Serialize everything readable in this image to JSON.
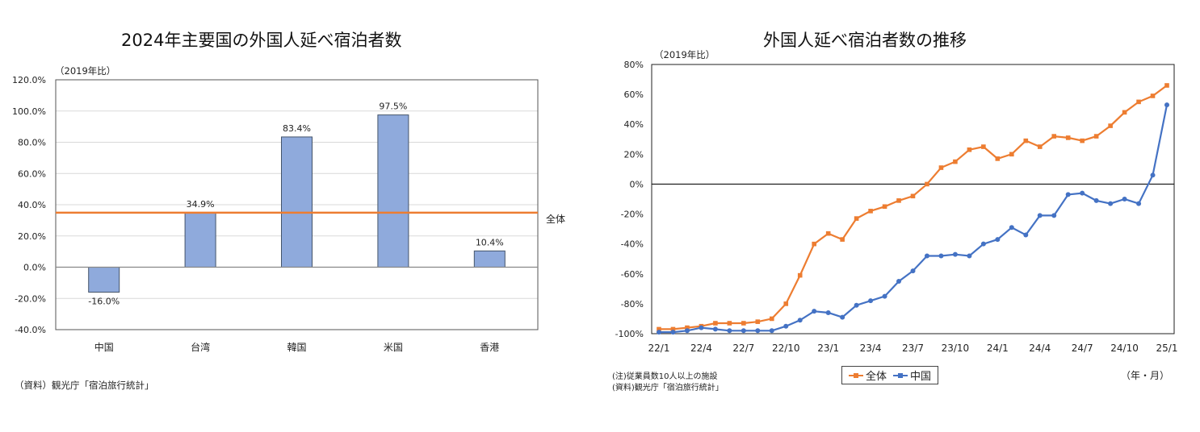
{
  "left_chart": {
    "title": "2024年主要国の外国人延べ宿泊者数",
    "unit_note": "（2019年比）",
    "source": "（資料）観光庁「宿泊旅行統計」",
    "reference_label": "全体",
    "y_ticks": [
      "120.0%",
      "100.0%",
      "80.0%",
      "60.0%",
      "40.0%",
      "20.0%",
      "0.0%",
      "-20.0%",
      "-40.0%"
    ],
    "colors": {
      "bar": "#8faadc",
      "bar_border": "#44546a",
      "reference": "#ed7d31"
    }
  },
  "right_chart": {
    "title": "外国人延べ宿泊者数の推移",
    "unit_note": "（2019年比）",
    "note": "(注)従業員数10人以上の施設",
    "source": "(資料)観光庁「宿泊旅行統計」",
    "x_unit": "（年・月）",
    "y_ticks": [
      "80%",
      "60%",
      "40%",
      "20%",
      "0%",
      "-20%",
      "-40%",
      "-60%",
      "-80%",
      "-100%"
    ],
    "x_ticks": [
      "22/1",
      "22/4",
      "22/7",
      "22/10",
      "23/1",
      "23/4",
      "23/7",
      "23/10",
      "24/1",
      "24/4",
      "24/7",
      "24/10",
      "25/1"
    ],
    "legend": [
      {
        "label": "全体",
        "color": "#ed7d31"
      },
      {
        "label": "中国",
        "color": "#4472c4"
      }
    ]
  },
  "chart_data": [
    {
      "type": "bar",
      "title": "2024年主要国の外国人延べ宿泊者数",
      "ylabel": "（2019年比）",
      "xlabel": "",
      "categories": [
        "中国",
        "台湾",
        "韓国",
        "米国",
        "香港"
      ],
      "values": [
        -16.0,
        34.9,
        83.4,
        97.5,
        10.4
      ],
      "value_labels": [
        "-16.0%",
        "34.9%",
        "83.4%",
        "97.5%",
        "10.4%"
      ],
      "reference_line": {
        "label": "全体",
        "value": 34.9
      },
      "ylim": [
        -40,
        120
      ],
      "grid": true,
      "source": "（資料）観光庁「宿泊旅行統計」"
    },
    {
      "type": "line",
      "title": "外国人延べ宿泊者数の推移",
      "ylabel": "（2019年比）",
      "xlabel": "（年・月）",
      "x": [
        "22/1",
        "22/2",
        "22/3",
        "22/4",
        "22/5",
        "22/6",
        "22/7",
        "22/8",
        "22/9",
        "22/10",
        "22/11",
        "22/12",
        "23/1",
        "23/2",
        "23/3",
        "23/4",
        "23/5",
        "23/6",
        "23/7",
        "23/8",
        "23/9",
        "23/10",
        "23/11",
        "23/12",
        "24/1",
        "24/2",
        "24/3",
        "24/4",
        "24/5",
        "24/6",
        "24/7",
        "24/8",
        "24/9",
        "24/10",
        "24/11",
        "24/12",
        "25/1"
      ],
      "series": [
        {
          "name": "全体",
          "values": [
            -97,
            -97,
            -96,
            -95,
            -93,
            -93,
            -93,
            -92,
            -90,
            -80,
            -61,
            -40,
            -33,
            -37,
            -23,
            -18,
            -15,
            -11,
            -8,
            0,
            11,
            15,
            23,
            25,
            17,
            20,
            29,
            25,
            32,
            31,
            29,
            32,
            39,
            48,
            55,
            59,
            66
          ]
        },
        {
          "name": "中国",
          "values": [
            -99,
            -99,
            -98,
            -96,
            -97,
            -98,
            -98,
            -98,
            -98,
            -95,
            -91,
            -85,
            -86,
            -89,
            -81,
            -78,
            -75,
            -65,
            -58,
            -48,
            -48,
            -47,
            -48,
            -40,
            -37,
            -29,
            -34,
            -21,
            -21,
            -7,
            -6,
            -11,
            -13,
            -10,
            -13,
            6,
            53
          ]
        }
      ],
      "ylim": [
        -100,
        80
      ],
      "grid": false,
      "legend_position": "bottom",
      "note": "(注)従業員数10人以上の施設",
      "source": "(資料)観光庁「宿泊旅行統計」"
    }
  ]
}
